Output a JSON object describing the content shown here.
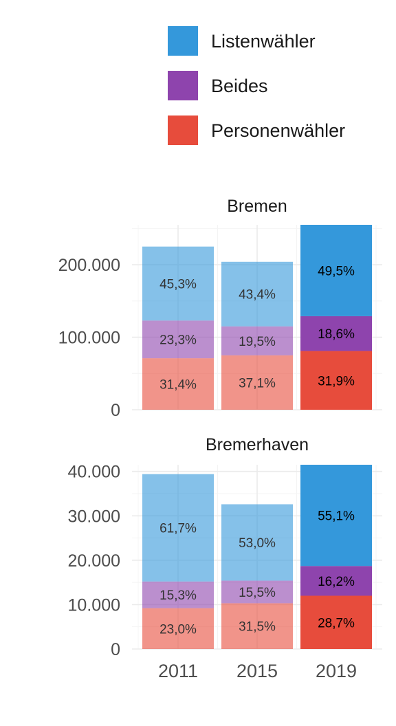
{
  "legend": {
    "items": [
      {
        "label": "Listenwähler",
        "color": "#3498db"
      },
      {
        "label": "Beides",
        "color": "#8e44ad"
      },
      {
        "label": "Personenwähler",
        "color": "#e74c3c"
      }
    ]
  },
  "chart_data": {
    "type": "bar",
    "stacked": true,
    "categories": [
      "2011",
      "2015",
      "2019"
    ],
    "highlight_category": "2019",
    "faded_opacity": 0.6,
    "stack_order_bottom_to_top": [
      "Personenwähler",
      "Beides",
      "Listenwähler"
    ],
    "grid": true,
    "legend_position": "top-right",
    "panels": [
      {
        "title": "Bremen",
        "ylim": [
          0,
          255000
        ],
        "yticks": [
          0,
          100000,
          200000
        ],
        "ytick_labels": [
          "0",
          "100.000",
          "200.000"
        ],
        "series": [
          {
            "name": "Personenwähler",
            "values": [
              71000,
              75000,
              81000
            ],
            "labels": [
              "31,4%",
              "37,1%",
              "31,9%"
            ]
          },
          {
            "name": "Beides",
            "values": [
              52000,
              40000,
              48000
            ],
            "labels": [
              "23,3%",
              "19,5%",
              "18,6%"
            ]
          },
          {
            "name": "Listenwähler",
            "values": [
              102000,
              89000,
              126000
            ],
            "labels": [
              "45,3%",
              "43,4%",
              "49,5%"
            ]
          }
        ]
      },
      {
        "title": "Bremerhaven",
        "ylim": [
          0,
          41500
        ],
        "yticks": [
          0,
          10000,
          20000,
          30000,
          40000
        ],
        "ytick_labels": [
          "0",
          "10.000",
          "20.000",
          "30.000",
          "40.000"
        ],
        "series": [
          {
            "name": "Personenwähler",
            "values": [
              9200,
              10300,
              12000
            ],
            "labels": [
              "23,0%",
              "31,5%",
              "28,7%"
            ]
          },
          {
            "name": "Beides",
            "values": [
              6000,
              5100,
              6700
            ],
            "labels": [
              "15,3%",
              "15,5%",
              "16,2%"
            ]
          },
          {
            "name": "Listenwähler",
            "values": [
              24200,
              17200,
              22800
            ],
            "labels": [
              "61,7%",
              "53,0%",
              "55,1%"
            ]
          }
        ]
      }
    ]
  }
}
